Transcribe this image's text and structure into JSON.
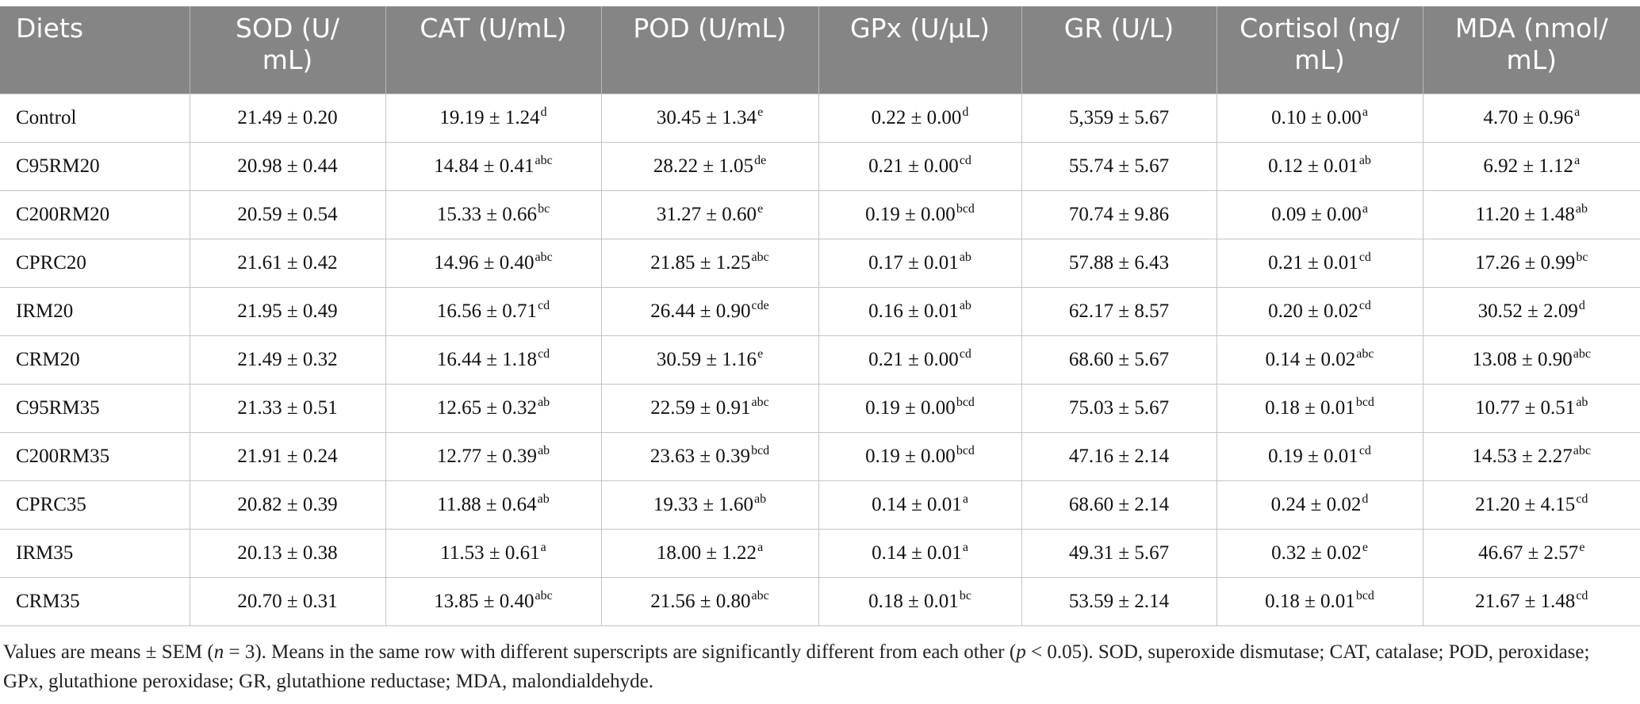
{
  "table": {
    "headers": [
      "Diets",
      "SOD (U/\nmL)",
      "CAT (U/mL)",
      "POD (U/mL)",
      "GPx (U/µL)",
      "GR (U/L)",
      "Cortisol (ng/\nmL)",
      "MDA (nmol/\nmL)"
    ],
    "rows": [
      [
        {
          "v": "Control"
        },
        {
          "v": "21.49 ± 0.20"
        },
        {
          "v": "19.19 ± 1.24",
          "s": "d"
        },
        {
          "v": "30.45 ± 1.34",
          "s": "e"
        },
        {
          "v": "0.22 ± 0.00",
          "s": "d"
        },
        {
          "v": "5,359 ± 5.67"
        },
        {
          "v": "0.10 ± 0.00",
          "s": "a"
        },
        {
          "v": "4.70 ± 0.96",
          "s": "a"
        }
      ],
      [
        {
          "v": "C95RM20"
        },
        {
          "v": "20.98 ± 0.44"
        },
        {
          "v": "14.84 ± 0.41",
          "s": "abc"
        },
        {
          "v": "28.22 ± 1.05",
          "s": "de"
        },
        {
          "v": "0.21 ± 0.00",
          "s": "cd"
        },
        {
          "v": "55.74 ± 5.67"
        },
        {
          "v": "0.12 ± 0.01",
          "s": "ab"
        },
        {
          "v": "6.92 ± 1.12",
          "s": "a"
        }
      ],
      [
        {
          "v": "C200RM20"
        },
        {
          "v": "20.59 ± 0.54"
        },
        {
          "v": "15.33 ± 0.66",
          "s": "bc"
        },
        {
          "v": "31.27 ± 0.60",
          "s": "e"
        },
        {
          "v": "0.19 ± 0.00",
          "s": "bcd"
        },
        {
          "v": "70.74 ± 9.86"
        },
        {
          "v": "0.09 ± 0.00",
          "s": "a"
        },
        {
          "v": "11.20 ± 1.48",
          "s": "ab"
        }
      ],
      [
        {
          "v": "CPRC20"
        },
        {
          "v": "21.61 ± 0.42"
        },
        {
          "v": "14.96 ± 0.40",
          "s": "abc"
        },
        {
          "v": "21.85 ± 1.25",
          "s": "abc"
        },
        {
          "v": "0.17 ± 0.01",
          "s": "ab"
        },
        {
          "v": "57.88 ± 6.43"
        },
        {
          "v": "0.21 ± 0.01",
          "s": "cd"
        },
        {
          "v": "17.26 ± 0.99",
          "s": "bc"
        }
      ],
      [
        {
          "v": "IRM20"
        },
        {
          "v": "21.95 ± 0.49"
        },
        {
          "v": "16.56 ± 0.71",
          "s": "cd"
        },
        {
          "v": "26.44 ± 0.90",
          "s": "cde"
        },
        {
          "v": "0.16 ± 0.01",
          "s": "ab"
        },
        {
          "v": "62.17 ± 8.57"
        },
        {
          "v": "0.20 ± 0.02",
          "s": "cd"
        },
        {
          "v": "30.52 ± 2.09",
          "s": "d"
        }
      ],
      [
        {
          "v": "CRM20"
        },
        {
          "v": "21.49 ± 0.32"
        },
        {
          "v": "16.44 ± 1.18",
          "s": "cd"
        },
        {
          "v": "30.59 ± 1.16",
          "s": "e"
        },
        {
          "v": "0.21 ± 0.00",
          "s": "cd"
        },
        {
          "v": "68.60 ± 5.67"
        },
        {
          "v": "0.14 ± 0.02",
          "s": "abc"
        },
        {
          "v": "13.08 ± 0.90",
          "s": "abc"
        }
      ],
      [
        {
          "v": "C95RM35"
        },
        {
          "v": "21.33 ± 0.51"
        },
        {
          "v": "12.65 ± 0.32",
          "s": "ab"
        },
        {
          "v": "22.59 ± 0.91",
          "s": "abc"
        },
        {
          "v": "0.19 ± 0.00",
          "s": "bcd"
        },
        {
          "v": "75.03 ± 5.67"
        },
        {
          "v": "0.18 ± 0.01",
          "s": "bcd"
        },
        {
          "v": "10.77 ± 0.51",
          "s": "ab"
        }
      ],
      [
        {
          "v": "C200RM35"
        },
        {
          "v": "21.91 ± 0.24"
        },
        {
          "v": "12.77 ± 0.39",
          "s": "ab"
        },
        {
          "v": "23.63 ± 0.39",
          "s": "bcd"
        },
        {
          "v": "0.19 ± 0.00",
          "s": "bcd"
        },
        {
          "v": "47.16 ± 2.14"
        },
        {
          "v": "0.19 ± 0.01",
          "s": "cd"
        },
        {
          "v": "14.53 ± 2.27",
          "s": "abc"
        }
      ],
      [
        {
          "v": "CPRC35"
        },
        {
          "v": "20.82 ± 0.39"
        },
        {
          "v": "11.88 ± 0.64",
          "s": "ab"
        },
        {
          "v": "19.33 ± 1.60",
          "s": "ab"
        },
        {
          "v": "0.14 ± 0.01",
          "s": "a"
        },
        {
          "v": "68.60 ± 2.14"
        },
        {
          "v": "0.24 ± 0.02",
          "s": "d"
        },
        {
          "v": "21.20 ± 4.15",
          "s": "cd"
        }
      ],
      [
        {
          "v": "IRM35"
        },
        {
          "v": "20.13 ± 0.38"
        },
        {
          "v": "11.53 ± 0.61",
          "s": "a"
        },
        {
          "v": "18.00 ± 1.22",
          "s": "a"
        },
        {
          "v": "0.14 ± 0.01",
          "s": "a"
        },
        {
          "v": "49.31 ± 5.67"
        },
        {
          "v": "0.32 ± 0.02",
          "s": "e"
        },
        {
          "v": "46.67 ± 2.57",
          "s": "e"
        }
      ],
      [
        {
          "v": "CRM35"
        },
        {
          "v": "20.70 ± 0.31"
        },
        {
          "v": "13.85 ± 0.40",
          "s": "abc"
        },
        {
          "v": "21.56 ± 0.80",
          "s": "abc"
        },
        {
          "v": "0.18 ± 0.01",
          "s": "bc"
        },
        {
          "v": "53.59 ± 2.14"
        },
        {
          "v": "0.18 ± 0.01",
          "s": "bcd"
        },
        {
          "v": "21.67 ± 1.48",
          "s": "cd"
        }
      ]
    ]
  },
  "footnote": {
    "part1": "Values are means ± SEM (",
    "italic_n": "n",
    "part2": " = 3). Means in the same row with different superscripts are significantly different from each other (",
    "italic_p": "p",
    "part3": " < 0.05). SOD, superoxide dismutase; CAT, catalase; POD, peroxidase; GPx, glutathione peroxidase; GR, glutathione reductase; MDA, malondialdehyde."
  }
}
